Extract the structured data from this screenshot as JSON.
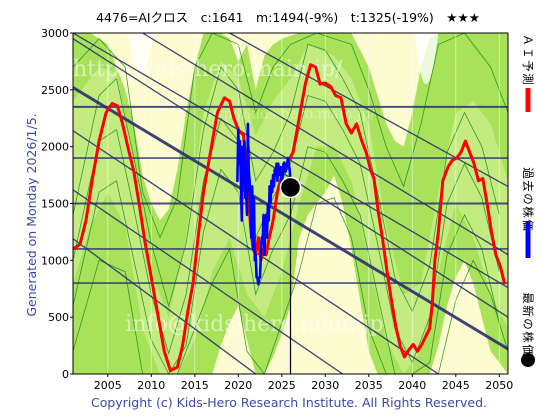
{
  "header": {
    "title": "4476=AIクロス　c:1641　m:1494(-9%)　t:1325(-19%)　★★★"
  },
  "footer": {
    "generated": "Generated on Monday 2026/1/5.",
    "copyright": "Copyright (c) Kids-Hero Research Institute. All Rights Reserved."
  },
  "watermarks": [
    "http://kids-hero.main.jp/",
    "http://kids-hero.main.jp/",
    "info@kids-hero.main.jp"
  ],
  "legend": [
    {
      "label": "ＡＩ予測",
      "color": "#ff0000",
      "marker": "bar"
    },
    {
      "label": "過去の株価",
      "color": "#0000ff",
      "marker": "bar"
    },
    {
      "label": "最新の株価",
      "color": "#000000",
      "marker": "dot"
    }
  ],
  "colors": {
    "background": "#fdfbd0",
    "band_green": "#a7e25a",
    "band_green_light": "#cdee8e",
    "band_line": "#1c8a1c",
    "trend_line": "#2b2f6e",
    "hline": "#2b2f6e",
    "ai_forecast": "#ff0000",
    "past_price": "#0000ff",
    "latest_marker": "#000000"
  },
  "chart_data": {
    "type": "line",
    "x_ticks": [
      2005,
      2010,
      2015,
      2020,
      2025,
      2030,
      2035,
      2040,
      2045,
      2050
    ],
    "y_ticks": [
      0,
      500,
      1000,
      1500,
      2000,
      2500,
      3000
    ],
    "xlim": [
      2001,
      2051
    ],
    "ylim": [
      0,
      3000
    ],
    "horizontal_lines": [
      800,
      1100,
      1500,
      1900,
      2350
    ],
    "trend_lines": [
      {
        "points": [
          [
            2001,
            2520
          ],
          [
            2051,
            220
          ]
        ],
        "bold": true
      },
      {
        "points": [
          [
            2001,
            3000
          ],
          [
            2051,
            760
          ]
        ],
        "bold": false
      },
      {
        "points": [
          [
            2001,
            2140
          ],
          [
            2043,
            0
          ]
        ],
        "bold": false
      },
      {
        "points": [
          [
            2001,
            1620
          ],
          [
            2032,
            0
          ]
        ],
        "bold": false
      },
      {
        "points": [
          [
            2001,
            1190
          ],
          [
            2022,
            0
          ]
        ],
        "bold": false
      },
      {
        "points": [
          [
            2009,
            3000
          ],
          [
            2051,
            1050
          ]
        ],
        "bold": false
      },
      {
        "points": [
          [
            2019,
            3000
          ],
          [
            2051,
            1650
          ]
        ],
        "bold": false
      },
      {
        "points": [
          [
            2001,
            2950
          ],
          [
            2051,
            500
          ]
        ],
        "bold": false
      }
    ],
    "series": [
      {
        "name": "ＡＩ予測",
        "color": "#ff0000",
        "points": [
          [
            2001.0,
            1100
          ],
          [
            2001.8,
            1140
          ],
          [
            2002.5,
            1350
          ],
          [
            2003.2,
            1700
          ],
          [
            2004.0,
            2050
          ],
          [
            2004.8,
            2300
          ],
          [
            2005.5,
            2380
          ],
          [
            2006.1,
            2360
          ],
          [
            2006.7,
            2200
          ],
          [
            2007.3,
            2000
          ],
          [
            2008.0,
            1780
          ],
          [
            2008.6,
            1500
          ],
          [
            2009.3,
            1150
          ],
          [
            2010.0,
            850
          ],
          [
            2010.8,
            500
          ],
          [
            2011.5,
            200
          ],
          [
            2012.2,
            30
          ],
          [
            2013.0,
            60
          ],
          [
            2013.6,
            250
          ],
          [
            2014.2,
            550
          ],
          [
            2014.8,
            800
          ],
          [
            2015.3,
            1150
          ],
          [
            2016.0,
            1600
          ],
          [
            2016.8,
            1950
          ],
          [
            2017.6,
            2300
          ],
          [
            2018.4,
            2430
          ],
          [
            2019.0,
            2400
          ],
          [
            2019.5,
            2250
          ],
          [
            2020.0,
            2150
          ],
          [
            2020.6,
            2100
          ],
          [
            2021.0,
            1750
          ],
          [
            2021.4,
            1300
          ],
          [
            2021.7,
            1100
          ],
          [
            2022.0,
            1050
          ],
          [
            2022.3,
            1200
          ],
          [
            2022.6,
            1000
          ],
          [
            2022.9,
            1100
          ],
          [
            2023.2,
            1050
          ],
          [
            2023.5,
            1180
          ],
          [
            2024.0,
            1350
          ],
          [
            2024.5,
            1600
          ],
          [
            2025.0,
            1750
          ],
          [
            2025.6,
            1850
          ],
          [
            2026.3,
            1950
          ],
          [
            2027.0,
            2250
          ],
          [
            2027.7,
            2550
          ],
          [
            2028.3,
            2720
          ],
          [
            2028.9,
            2700
          ],
          [
            2029.4,
            2550
          ],
          [
            2030.0,
            2560
          ],
          [
            2030.6,
            2530
          ],
          [
            2031.2,
            2450
          ],
          [
            2031.8,
            2430
          ],
          [
            2032.4,
            2200
          ],
          [
            2033.0,
            2120
          ],
          [
            2033.6,
            2200
          ],
          [
            2034.2,
            2050
          ],
          [
            2034.7,
            1950
          ],
          [
            2035.2,
            1800
          ],
          [
            2035.6,
            1720
          ],
          [
            2036.1,
            1420
          ],
          [
            2036.6,
            1180
          ],
          [
            2037.1,
            900
          ],
          [
            2037.6,
            650
          ],
          [
            2038.1,
            420
          ],
          [
            2038.6,
            250
          ],
          [
            2039.1,
            150
          ],
          [
            2039.6,
            210
          ],
          [
            2040.1,
            260
          ],
          [
            2040.6,
            200
          ],
          [
            2041.1,
            260
          ],
          [
            2041.6,
            340
          ],
          [
            2042.0,
            400
          ],
          [
            2042.3,
            620
          ],
          [
            2042.6,
            1000
          ],
          [
            2043.0,
            1250
          ],
          [
            2043.5,
            1700
          ],
          [
            2044.1,
            1820
          ],
          [
            2044.6,
            1880
          ],
          [
            2045.1,
            1900
          ],
          [
            2045.6,
            1950
          ],
          [
            2046.1,
            2050
          ],
          [
            2046.6,
            1950
          ],
          [
            2047.1,
            1850
          ],
          [
            2047.6,
            1700
          ],
          [
            2048.1,
            1720
          ],
          [
            2048.6,
            1500
          ],
          [
            2049.1,
            1250
          ],
          [
            2049.6,
            1050
          ],
          [
            2050.1,
            950
          ],
          [
            2050.6,
            800
          ]
        ]
      },
      {
        "name": "過去の株価",
        "color": "#0000ff",
        "points": [
          [
            2019.9,
            1700
          ],
          [
            2020.0,
            2150
          ],
          [
            2020.1,
            1850
          ],
          [
            2020.2,
            2050
          ],
          [
            2020.3,
            1700
          ],
          [
            2020.4,
            1350
          ],
          [
            2020.5,
            2000
          ],
          [
            2020.6,
            1650
          ],
          [
            2020.7,
            2050
          ],
          [
            2020.8,
            1550
          ],
          [
            2020.9,
            1600
          ],
          [
            2021.0,
            1400
          ],
          [
            2021.1,
            2200
          ],
          [
            2021.2,
            1800
          ],
          [
            2021.3,
            1700
          ],
          [
            2021.4,
            1500
          ],
          [
            2021.5,
            1200
          ],
          [
            2021.6,
            1650
          ],
          [
            2021.7,
            1100
          ],
          [
            2021.8,
            1550
          ],
          [
            2021.9,
            1000
          ],
          [
            2022.0,
            1050
          ],
          [
            2022.1,
            850
          ],
          [
            2022.2,
            850
          ],
          [
            2022.3,
            790
          ],
          [
            2022.4,
            850
          ],
          [
            2022.5,
            850
          ],
          [
            2022.6,
            1050
          ],
          [
            2022.7,
            1200
          ],
          [
            2022.8,
            1150
          ],
          [
            2022.9,
            1400
          ],
          [
            2023.0,
            1050
          ],
          [
            2023.1,
            1300
          ],
          [
            2023.2,
            1400
          ],
          [
            2023.3,
            1200
          ],
          [
            2023.4,
            1500
          ],
          [
            2023.5,
            1350
          ],
          [
            2023.6,
            1650
          ],
          [
            2023.7,
            1500
          ],
          [
            2023.8,
            1700
          ],
          [
            2023.9,
            1600
          ],
          [
            2024.0,
            1750
          ],
          [
            2024.1,
            1650
          ],
          [
            2024.2,
            1800
          ],
          [
            2024.3,
            1750
          ],
          [
            2024.4,
            1850
          ],
          [
            2024.5,
            1700
          ],
          [
            2024.6,
            1850
          ],
          [
            2024.7,
            1750
          ],
          [
            2024.8,
            1800
          ],
          [
            2024.9,
            1820
          ],
          [
            2025.0,
            1650
          ],
          [
            2025.1,
            1750
          ],
          [
            2025.2,
            1850
          ],
          [
            2025.3,
            1860
          ],
          [
            2025.4,
            1780
          ],
          [
            2025.5,
            1800
          ],
          [
            2025.6,
            1830
          ],
          [
            2025.7,
            1900
          ],
          [
            2025.8,
            1850
          ],
          [
            2025.9,
            1800
          ],
          [
            2026.0,
            1700
          ],
          [
            2026.1,
            1641
          ]
        ]
      }
    ],
    "latest": {
      "x": 2026.0,
      "y": 1641
    },
    "band_areas": "green prediction band regions (shaded) overlaid on pale yellow background"
  }
}
